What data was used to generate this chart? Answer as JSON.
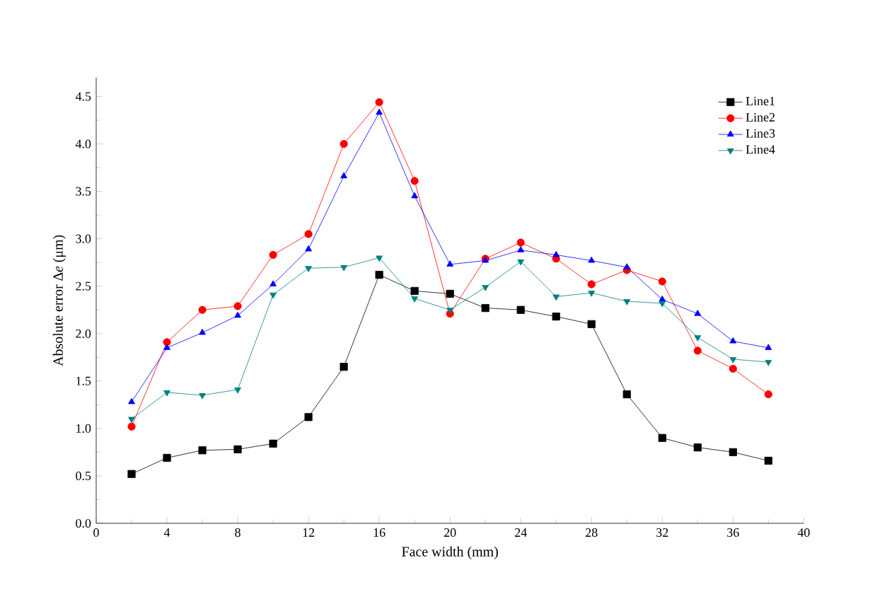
{
  "chart_data": {
    "type": "line",
    "xlabel": "Face width (mm)",
    "ylabel": "Absolute error ∆*e* (μm)",
    "x": [
      2,
      4,
      6,
      8,
      10,
      12,
      14,
      16,
      18,
      20,
      22,
      24,
      26,
      28,
      30,
      32,
      34,
      36,
      38
    ],
    "series": [
      {
        "name": "Line1",
        "color": "#000000",
        "marker": "square",
        "values": [
          0.52,
          0.69,
          0.77,
          0.78,
          0.84,
          1.12,
          1.65,
          2.62,
          2.45,
          2.42,
          2.27,
          2.25,
          2.18,
          2.1,
          1.36,
          0.9,
          0.8,
          0.75,
          0.66
        ]
      },
      {
        "name": "Line2",
        "color": "#ff0000",
        "marker": "circle",
        "values": [
          1.02,
          1.91,
          2.25,
          2.29,
          2.83,
          3.05,
          4.0,
          4.44,
          3.61,
          2.21,
          2.79,
          2.96,
          2.79,
          2.52,
          2.67,
          2.55,
          1.82,
          1.63,
          1.36
        ]
      },
      {
        "name": "Line3",
        "color": "#0000ff",
        "marker": "triangle",
        "values": [
          1.28,
          1.85,
          2.01,
          2.19,
          2.52,
          2.89,
          3.66,
          4.33,
          3.45,
          2.73,
          2.77,
          2.88,
          2.83,
          2.77,
          2.7,
          2.36,
          2.21,
          1.92,
          1.85
        ]
      },
      {
        "name": "Line4",
        "color": "#008080",
        "marker": "triangle-down",
        "values": [
          1.1,
          1.38,
          1.35,
          1.41,
          2.41,
          2.69,
          2.7,
          2.8,
          2.37,
          2.25,
          2.49,
          2.76,
          2.39,
          2.43,
          2.34,
          2.32,
          1.96,
          1.73,
          1.7
        ]
      }
    ],
    "xlim": [
      0,
      40
    ],
    "xticks": [
      0,
      4,
      8,
      12,
      16,
      20,
      24,
      28,
      32,
      36,
      40
    ],
    "ylim": [
      0,
      4.7
    ],
    "yticks": [
      {
        "value": 0,
        "label": "0.0"
      },
      {
        "value": 0.5,
        "label": "0.5"
      },
      {
        "value": 1,
        "label": "1.0"
      },
      {
        "value": 1.5,
        "label": "1.5"
      },
      {
        "value": 2,
        "label": "2.0"
      },
      {
        "value": 2.5,
        "label": "2.5"
      },
      {
        "value": 3,
        "label": "3.0"
      },
      {
        "value": 3.5,
        "label": "3.5"
      },
      {
        "value": 4,
        "label": "4.0"
      },
      {
        "value": 4.5,
        "label": "4.5"
      }
    ],
    "grid": false,
    "legend": "top right",
    "line_style": "solid"
  }
}
